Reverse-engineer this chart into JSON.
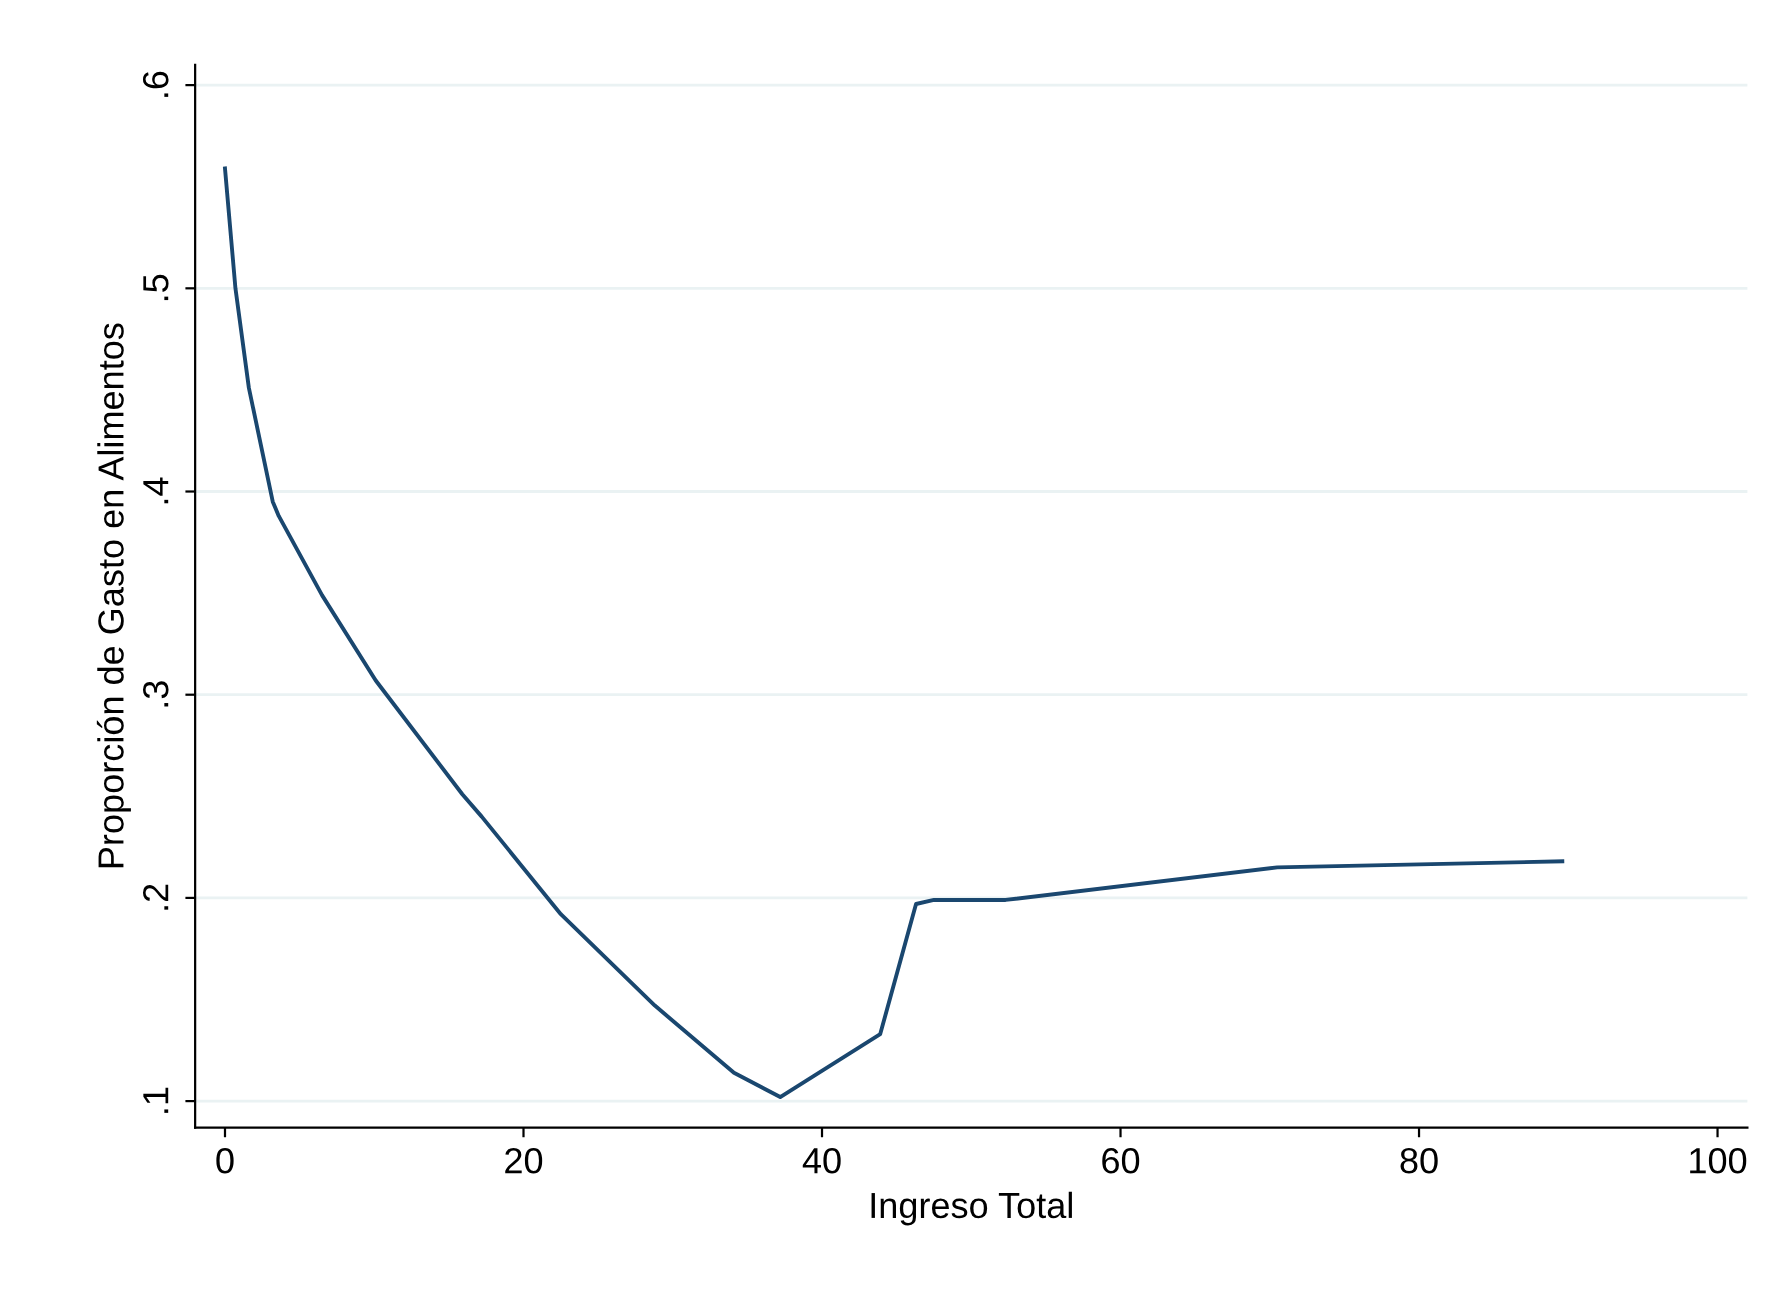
{
  "chart_data": {
    "type": "line",
    "xlabel": "Ingreso Total",
    "ylabel": "Proporción de Gasto en Alimentos",
    "x": [
      0,
      0.7,
      1.6,
      3.2,
      3.6,
      6.5,
      10.1,
      15.9,
      17.2,
      22.5,
      28.8,
      34.1,
      37.2,
      43.9,
      46.3,
      47.5,
      52.3,
      70.5,
      89.6
    ],
    "series": [
      {
        "color": "#1a476f",
        "values": [
          0.559,
          0.5,
          0.451,
          0.395,
          0.388,
          0.349,
          0.307,
          0.251,
          0.24,
          0.192,
          0.147,
          0.114,
          0.102,
          0.133,
          0.197,
          0.199,
          0.199,
          0.215,
          0.218
        ]
      }
    ],
    "xlim": [
      -2,
      102
    ],
    "ylim": [
      0.087,
      0.61
    ],
    "xticks": [
      0,
      20,
      40,
      60,
      80,
      100
    ],
    "yticks": [
      {
        "value": 0.1,
        "label": ".1"
      },
      {
        "value": 0.2,
        "label": ".2"
      },
      {
        "value": 0.3,
        "label": ".3"
      },
      {
        "value": 0.4,
        "label": ".4"
      },
      {
        "value": 0.5,
        "label": ".5"
      },
      {
        "value": 0.6,
        "label": ".6"
      }
    ],
    "grid": "y",
    "legend": false
  }
}
